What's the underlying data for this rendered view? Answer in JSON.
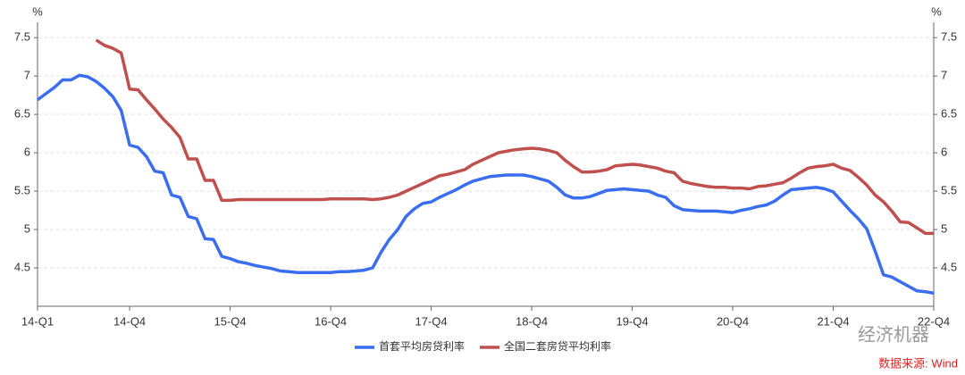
{
  "chart_data": {
    "type": "line",
    "y_label": "%",
    "y2_label": "%",
    "categories": [
      "14-Q1",
      null,
      null,
      null,
      null,
      null,
      null,
      null,
      null,
      null,
      null,
      "14-Q4",
      null,
      null,
      null,
      null,
      null,
      null,
      null,
      null,
      null,
      null,
      null,
      "15-Q4",
      null,
      null,
      null,
      null,
      null,
      null,
      null,
      null,
      null,
      null,
      null,
      "16-Q4",
      null,
      null,
      null,
      null,
      null,
      null,
      null,
      null,
      null,
      null,
      null,
      "17-Q4",
      null,
      null,
      null,
      null,
      null,
      null,
      null,
      null,
      null,
      null,
      null,
      "18-Q4",
      null,
      null,
      null,
      null,
      null,
      null,
      null,
      null,
      null,
      null,
      null,
      "19-Q4",
      null,
      null,
      null,
      null,
      null,
      null,
      null,
      null,
      null,
      null,
      null,
      "20-Q4",
      null,
      null,
      null,
      null,
      null,
      null,
      null,
      null,
      null,
      null,
      null,
      "21-Q4",
      null,
      null,
      null,
      null,
      null,
      null,
      null,
      null,
      null,
      null,
      null,
      "22-Q4"
    ],
    "series": [
      {
        "name": "首套平均房贷利率",
        "color": "#3a6ef0",
        "values": [
          6.69,
          6.77,
          6.85,
          6.95,
          6.95,
          7.01,
          6.99,
          6.93,
          6.84,
          6.73,
          6.55,
          6.1,
          6.07,
          5.95,
          5.76,
          5.74,
          5.45,
          5.42,
          5.17,
          5.14,
          4.88,
          4.87,
          4.65,
          4.62,
          4.58,
          4.56,
          4.53,
          4.51,
          4.49,
          4.46,
          4.45,
          4.44,
          4.44,
          4.44,
          4.44,
          4.44,
          4.45,
          4.45,
          4.46,
          4.47,
          4.5,
          4.7,
          4.87,
          5.0,
          5.17,
          5.27,
          5.34,
          5.36,
          5.42,
          5.47,
          5.52,
          5.58,
          5.63,
          5.66,
          5.69,
          5.7,
          5.71,
          5.71,
          5.71,
          5.69,
          5.66,
          5.63,
          5.55,
          5.45,
          5.41,
          5.41,
          5.43,
          5.47,
          5.51,
          5.52,
          5.53,
          5.52,
          5.51,
          5.5,
          5.45,
          5.42,
          5.31,
          5.26,
          5.25,
          5.24,
          5.24,
          5.24,
          5.23,
          5.22,
          5.25,
          5.27,
          5.3,
          5.32,
          5.37,
          5.45,
          5.52,
          5.53,
          5.54,
          5.55,
          5.53,
          5.49,
          5.37,
          5.25,
          5.14,
          5.01,
          4.72,
          4.41,
          4.38,
          4.32,
          4.26,
          4.2,
          4.19,
          4.17
        ]
      },
      {
        "name": "全国二套房贷平均利率",
        "color": "#c0504d",
        "values": [
          null,
          null,
          null,
          null,
          null,
          null,
          null,
          7.47,
          7.4,
          7.36,
          7.3,
          6.83,
          6.82,
          6.69,
          6.57,
          6.44,
          6.33,
          6.2,
          5.92,
          5.92,
          5.64,
          5.64,
          5.38,
          5.38,
          5.39,
          5.39,
          5.39,
          5.39,
          5.39,
          5.39,
          5.39,
          5.39,
          5.39,
          5.39,
          5.39,
          5.4,
          5.4,
          5.4,
          5.4,
          5.4,
          5.39,
          5.4,
          5.42,
          5.45,
          5.5,
          5.55,
          5.6,
          5.65,
          5.7,
          5.72,
          5.75,
          5.78,
          5.85,
          5.9,
          5.95,
          6.0,
          6.02,
          6.04,
          6.05,
          6.06,
          6.05,
          6.03,
          6.0,
          5.9,
          5.82,
          5.75,
          5.75,
          5.76,
          5.78,
          5.83,
          5.84,
          5.85,
          5.84,
          5.82,
          5.8,
          5.76,
          5.74,
          5.63,
          5.6,
          5.58,
          5.56,
          5.55,
          5.55,
          5.54,
          5.54,
          5.53,
          5.56,
          5.57,
          5.59,
          5.61,
          5.67,
          5.74,
          5.8,
          5.82,
          5.83,
          5.85,
          5.8,
          5.77,
          5.68,
          5.58,
          5.45,
          5.36,
          5.24,
          5.1,
          5.09,
          5.02,
          4.95,
          4.95
        ]
      }
    ],
    "ylim": [
      4,
      7.7
    ],
    "yticks": [
      4.5,
      5,
      5.5,
      6,
      6.5,
      7,
      7.5
    ],
    "y2lim": [
      4,
      7.7
    ],
    "y2ticks": [
      4.5,
      5,
      5.5,
      6,
      6.5,
      7,
      7.5
    ],
    "grid": true,
    "watermark": "经济机器",
    "source": "数据来源: Wind"
  }
}
